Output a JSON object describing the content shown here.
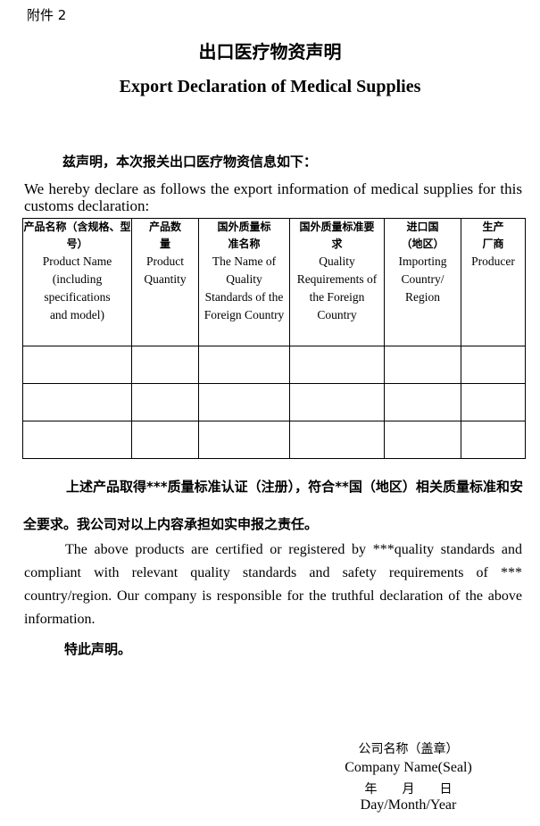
{
  "attachment_label": "附件 2",
  "title_cn": "出口医疗物资声明",
  "title_en": "Export Declaration of Medical Supplies",
  "intro_cn": "兹声明，本次报关出口医疗物资信息如下：",
  "intro_en": "We hereby declare as follows the export information of medical supplies for this customs declaration:",
  "table": {
    "columns": [
      {
        "cn": "产品名称（含规格、型号）",
        "en": "Product Name (including specifications and model)"
      },
      {
        "cn": "产品数量",
        "en": "Product Quantity"
      },
      {
        "cn": "国外质量标准名称",
        "en": "The Name of Quality Standards of the Foreign Country"
      },
      {
        "cn": "国外质量标准要求",
        "en": "Quality Requirements of the Foreign Country"
      },
      {
        "cn": "进口国（地区）",
        "en": "Importing Country/ Region"
      },
      {
        "cn": "生产厂商",
        "en": "Producer"
      }
    ],
    "rows": [
      [
        "",
        "",
        "",
        "",
        "",
        ""
      ],
      [
        "",
        "",
        "",
        "",
        "",
        ""
      ],
      [
        "",
        "",
        "",
        "",
        "",
        ""
      ]
    ]
  },
  "para_cn": "上述产品取得***质量标准认证（注册），符合**国（地区）相关质量标准和安全要求。我公司对以上内容承担如实申报之责任。",
  "para_en": "The above products are certified or registered by ***quality standards and compliant with relevant quality standards and safety requirements of *** country/region. Our company is responsible for the truthful declaration of the above information.",
  "declaration": "特此声明。",
  "signature": {
    "company_cn": "公司名称（盖章）",
    "company_en": "Company Name(Seal)",
    "date_cn": "年　　月　　日",
    "date_en": "Day/Month/Year"
  }
}
